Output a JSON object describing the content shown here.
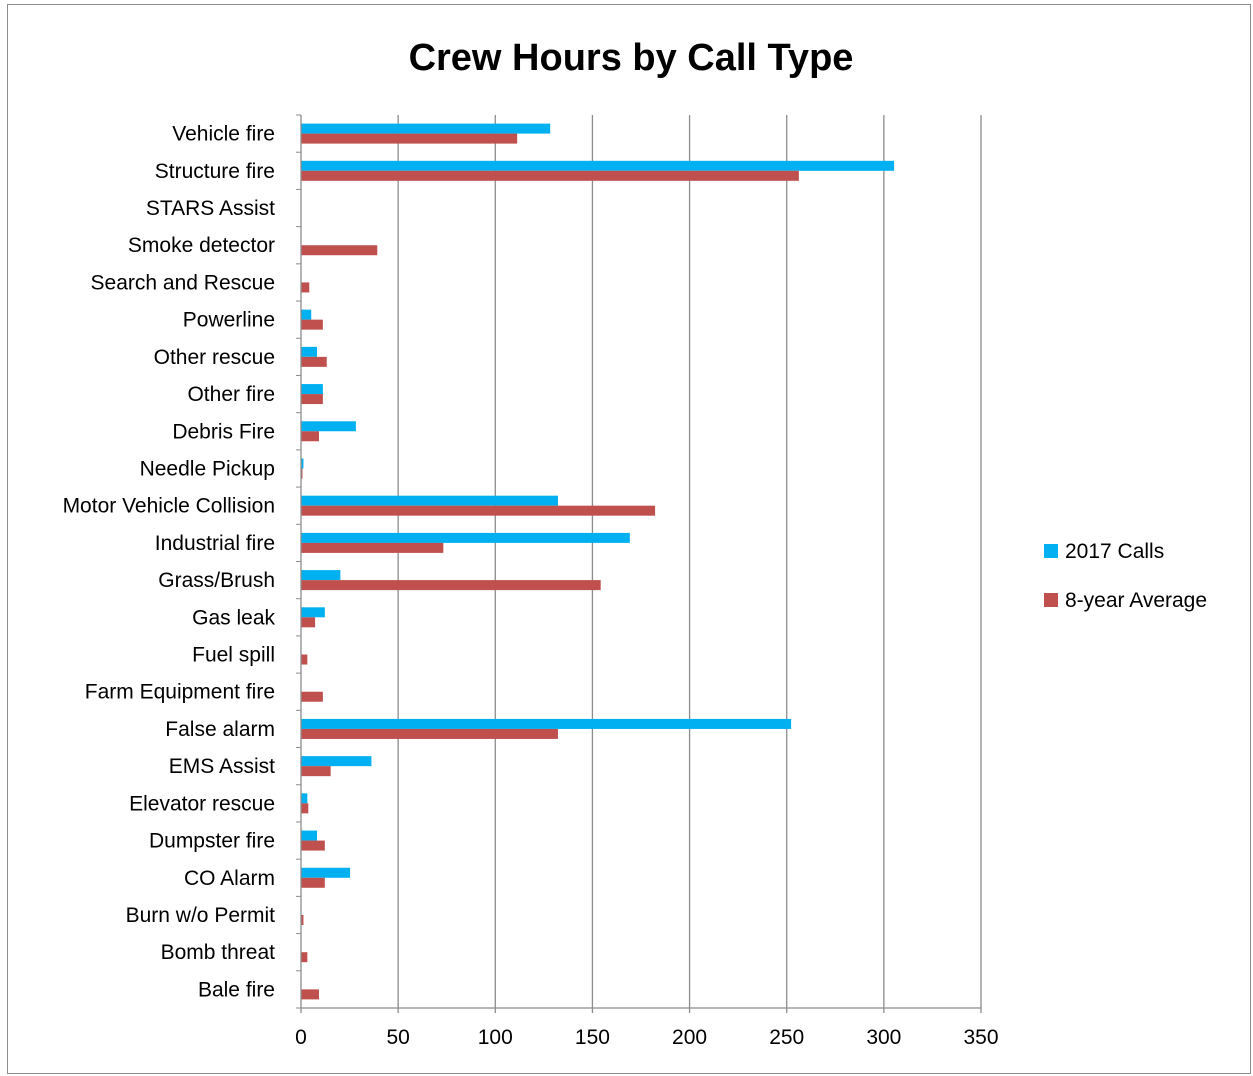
{
  "chart_data": {
    "type": "bar",
    "orientation": "horizontal",
    "title": "Crew Hours by Call Type",
    "xlabel": "",
    "ylabel": "",
    "xlim": [
      0,
      350
    ],
    "x_ticks": [
      0,
      50,
      100,
      150,
      200,
      250,
      300,
      350
    ],
    "grid": "vertical",
    "legend_position": "right",
    "categories": [
      "Vehicle fire",
      "Structure fire",
      "STARS Assist",
      "Smoke detector",
      "Search and Rescue",
      "Powerline",
      "Other rescue",
      "Other fire",
      "Debris Fire",
      "Needle Pickup",
      "Motor Vehicle Collision",
      "Industrial fire",
      "Grass/Brush",
      "Gas leak",
      "Fuel spill",
      "Farm Equipment fire",
      "False alarm",
      "EMS Assist",
      "Elevator rescue",
      "Dumpster fire",
      "CO Alarm",
      "Burn w/o Permit",
      "Bomb threat",
      "Bale fire"
    ],
    "series": [
      {
        "name": "2017 Calls",
        "color": "#00B0F0",
        "values": [
          128,
          305,
          0,
          0,
          0,
          5,
          8,
          11,
          28,
          1,
          132,
          169,
          20,
          12,
          0,
          0,
          252,
          36,
          3,
          8,
          25,
          0,
          0,
          0
        ]
      },
      {
        "name": "8-year Average",
        "color": "#C0504D",
        "values": [
          111,
          256,
          0,
          39,
          4,
          11,
          13,
          11,
          9,
          0.5,
          182,
          73,
          154,
          7,
          3,
          11,
          132,
          15,
          3.5,
          12,
          12,
          1,
          3,
          9
        ]
      }
    ]
  }
}
